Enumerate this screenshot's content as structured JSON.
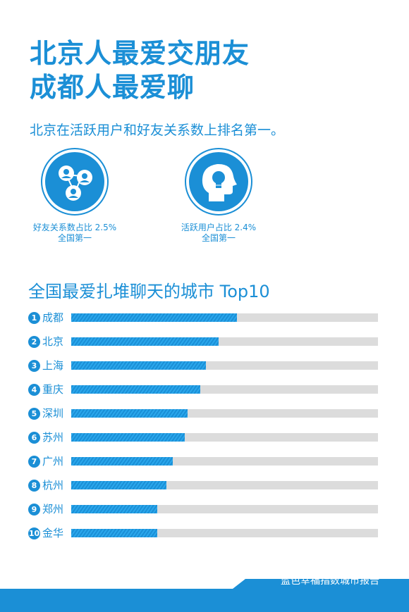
{
  "headline": {
    "line1": "北京人最爱交朋友",
    "line2": "成都人最爱聊"
  },
  "subline": "北京在活跃用户和好友关系数上排名第一。",
  "stats": [
    {
      "icon": "friends-network-icon",
      "line1": "好友关系数占比 2.5%",
      "line2": "全国第一"
    },
    {
      "icon": "head-lightbulb-icon",
      "line1": "活跃用户占比 2.4%",
      "line2": "全国第一"
    }
  ],
  "chart_data": {
    "type": "bar",
    "title": "全国最爱扎堆聊天的城市 Top10",
    "categories": [
      "成都",
      "北京",
      "上海",
      "重庆",
      "深圳",
      "苏州",
      "广州",
      "杭州",
      "郑州",
      "金华"
    ],
    "ranks": [
      "1",
      "2",
      "3",
      "4",
      "5",
      "6",
      "7",
      "8",
      "9",
      "10"
    ],
    "values": [
      0.54,
      0.48,
      0.44,
      0.42,
      0.38,
      0.37,
      0.33,
      0.31,
      0.28,
      0.28
    ],
    "ylim": [
      0,
      1
    ]
  },
  "footer": {
    "text": "蓝色幸福指数城市报告"
  },
  "colors": {
    "accent": "#1b8fd6",
    "track": "#dcdcdc"
  }
}
